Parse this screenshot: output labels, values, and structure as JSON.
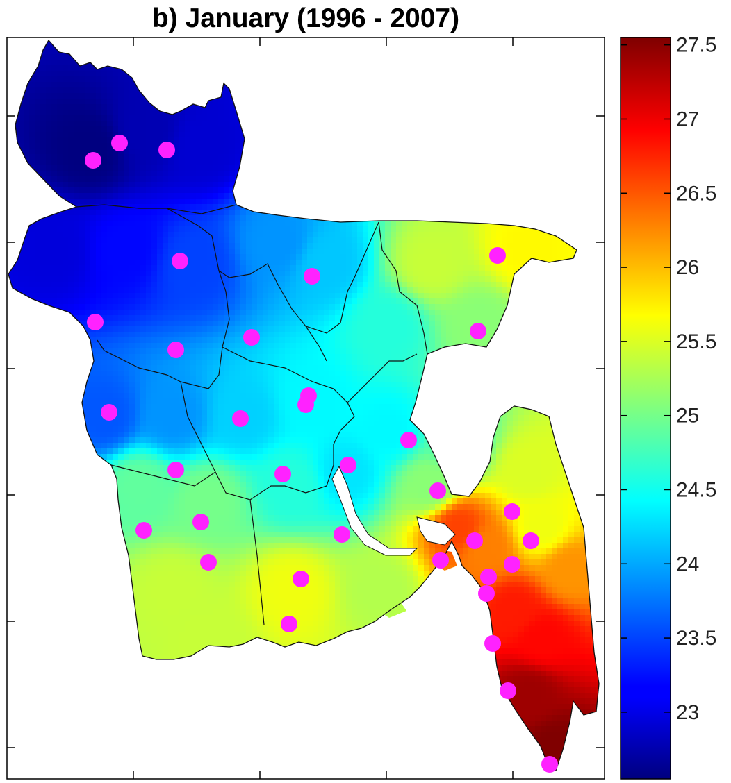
{
  "title": "b) January (1996 - 2007)",
  "colorbar": {
    "min": 22.55,
    "max": 27.55,
    "ticks": [
      "27.5",
      "27",
      "26.5",
      "26",
      "25.5",
      "25",
      "24.5",
      "24",
      "23.5",
      "23"
    ],
    "colormap": "jet"
  },
  "colors": {
    "station_marker": "#ff22ff",
    "frame": "#000000",
    "boundary": "#111111"
  },
  "stations_count_visible": 34
}
